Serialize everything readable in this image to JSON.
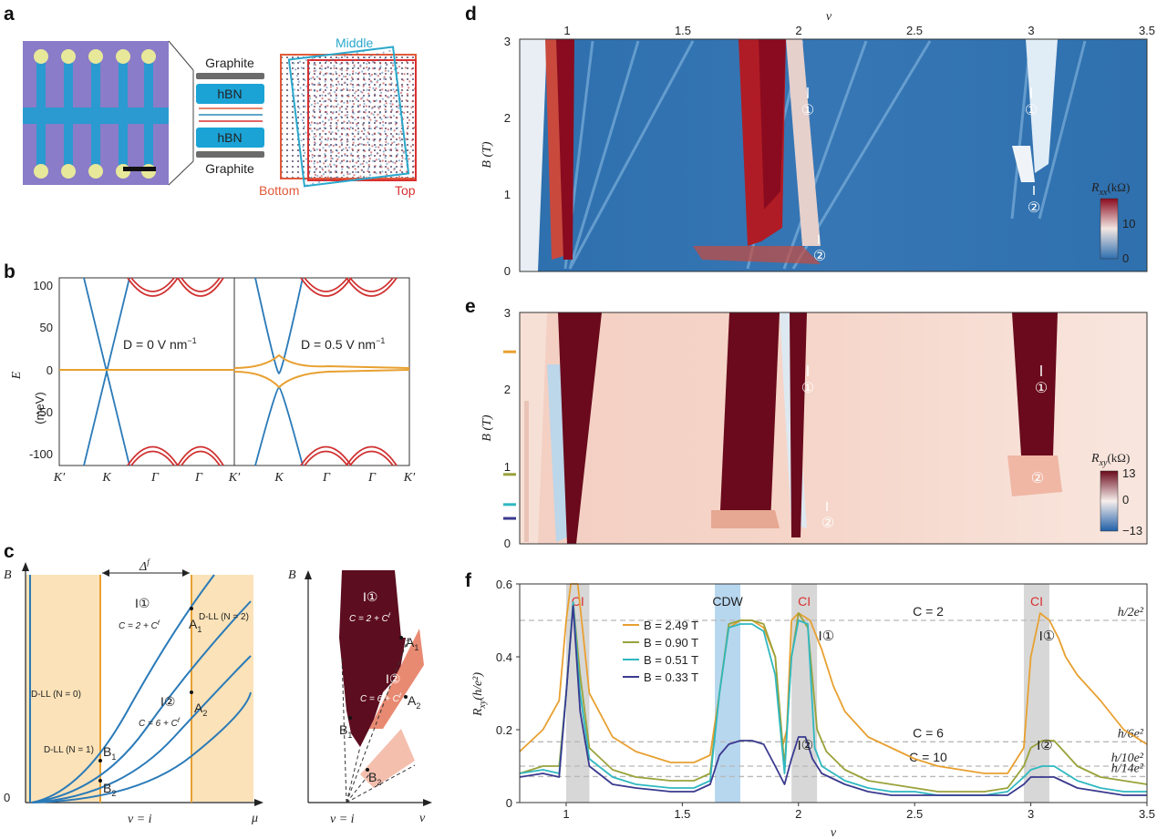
{
  "panel_letters": [
    "a",
    "b",
    "c",
    "d",
    "e",
    "f"
  ],
  "panel_a": {
    "layers": [
      "Graphite",
      "hBN",
      "hBN",
      "Graphite"
    ],
    "moire_labels": {
      "middle": "Middle",
      "bottom": "Bottom",
      "top": "Top"
    },
    "colors": {
      "hbn": "#1ba3d6",
      "graphite": "#6b6b6b",
      "bottom": "#e05a3a",
      "top": "#d93030",
      "middle": "#2aa8cc"
    }
  },
  "panel_b": {
    "ylabel_sym": "E",
    "ylabel_unit": "(meV)",
    "yticks": [
      "100",
      "50",
      "0",
      "-50",
      "-100"
    ],
    "xticks_left": [
      "K′",
      "K",
      "Γ",
      "Γ"
    ],
    "xticks_right": [
      "K′",
      "K",
      "Γ",
      "Γ",
      "K′"
    ],
    "annot_left": "D = 0 V nm",
    "annot_right": "D = 0.5 V nm",
    "annot_sup": "−1",
    "colors": {
      "dirac": "#2a7ab8",
      "flat": "#e8a030",
      "remote": "#d03030"
    }
  },
  "panel_c": {
    "left": {
      "ylabel": "B",
      "origin": "0",
      "xlabel": "μ",
      "vi": "ν = i",
      "delta": "Δ",
      "i1": "I",
      "i1c": "①",
      "c1": "C = 2 + C",
      "i2": "I",
      "i2c": "②",
      "c2": "C = 6 + C",
      "dll0": "D-LL (N = 0)",
      "dll1": "D-LL (N = 1)",
      "dll2": "D-LL (N = 2)",
      "points": {
        "a1": "A",
        "a2": "A",
        "b1": "B",
        "b2": "B",
        "s1": "1",
        "s2": "2"
      }
    },
    "right": {
      "ylabel": "B",
      "xlabel": "ν",
      "vi": "ν = i",
      "i1": "I",
      "i1c": "①",
      "c1": "C = 2 + C",
      "i2": "I",
      "i2c": "②",
      "c2": "C = 6 + C",
      "points": {
        "a1": "A",
        "a2": "A",
        "b1": "B",
        "b2": "B",
        "s1": "1",
        "s2": "2"
      }
    },
    "colors": {
      "band": "#fbe2b8",
      "line": "#2a7ab8",
      "vline": "#e8a030",
      "dark": "#5c0d1f",
      "mid": "#e88a72",
      "light": "#f5bfae"
    }
  },
  "panel_d": {
    "xlabel_top": "ν",
    "xticks": [
      "1",
      "1.5",
      "2",
      "2.5",
      "3",
      "3.5"
    ],
    "ylabel": "B (T)",
    "yticks": [
      "0",
      "1",
      "2",
      "3"
    ],
    "colorbar": {
      "label": "R",
      "sub": "xx",
      "unit": "(kΩ)",
      "max": "10",
      "min": "0"
    },
    "marks": [
      "①",
      "①",
      "②",
      "②"
    ]
  },
  "panel_e": {
    "ylabel": "B (T)",
    "yticks": [
      "0",
      "1",
      "2",
      "3"
    ],
    "colorbar": {
      "label": "R",
      "sub": "xy",
      "unit": "(kΩ)",
      "max": "13",
      "mid": "0",
      "min": "−13"
    },
    "marks": [
      "①",
      "①",
      "②",
      "②"
    ],
    "side_markers": [
      {
        "B": 2.49,
        "color": "#e8a030"
      },
      {
        "B": 0.9,
        "color": "#9aa23a"
      },
      {
        "B": 0.51,
        "color": "#2fb8c0"
      },
      {
        "B": 0.33,
        "color": "#3a3a8f"
      }
    ]
  },
  "chart_data": {
    "type": "line",
    "x_label": "ν",
    "y_label": "R",
    "y_label_sub": "xy",
    "y_label_unit": "(h/e²)",
    "xlim": [
      0.8,
      3.5
    ],
    "ylim": [
      0,
      0.6
    ],
    "xticks": [
      "1",
      "1.5",
      "2",
      "2.5",
      "3",
      "3.5"
    ],
    "yticks": [
      "0",
      "0.2",
      "0.4",
      "0.6"
    ],
    "regions": [
      {
        "label": "CI",
        "x": [
          1.0,
          1.1
        ],
        "color": "#d7d7d7"
      },
      {
        "label": "CDW",
        "x": [
          1.64,
          1.75
        ],
        "color": "#b7d7ef"
      },
      {
        "label": "CI",
        "x": [
          1.97,
          2.08
        ],
        "color": "#d7d7d7"
      },
      {
        "label": "CI",
        "x": [
          2.97,
          3.08
        ],
        "color": "#d7d7d7"
      }
    ],
    "hlines": [
      {
        "y": 0.5,
        "label": "h/2e²",
        "C": "C = 2"
      },
      {
        "y": 0.1667,
        "label": "h/6e²",
        "C": "C = 6"
      },
      {
        "y": 0.1,
        "label": "h/10e²",
        "C": "C = 10"
      },
      {
        "y": 0.0714,
        "label": "h/14e²",
        "C": ""
      }
    ],
    "marks": [
      {
        "x": 2.12,
        "y": 0.5,
        "t": "I①"
      },
      {
        "x": 3.07,
        "y": 0.5,
        "t": "I①"
      },
      {
        "x": 2.03,
        "y": 0.2,
        "t": "I②"
      },
      {
        "x": 3.06,
        "y": 0.2,
        "t": "I②"
      }
    ],
    "legend": [
      {
        "name": "B = 2.49 T",
        "color": "#e8a030"
      },
      {
        "name": "B = 0.90 T",
        "color": "#9aa23a"
      },
      {
        "name": "B = 0.51 T",
        "color": "#2fb8c0"
      },
      {
        "name": "B = 0.33 T",
        "color": "#3a3a8f"
      }
    ],
    "series": [
      {
        "name": "B = 2.49 T",
        "color": "#e8a030",
        "x": [
          0.8,
          0.9,
          0.97,
          1.0,
          1.02,
          1.05,
          1.1,
          1.2,
          1.3,
          1.45,
          1.55,
          1.62,
          1.66,
          1.7,
          1.75,
          1.8,
          1.85,
          1.9,
          1.93,
          1.95,
          1.97,
          2.0,
          2.05,
          2.1,
          2.15,
          2.2,
          2.3,
          2.4,
          2.5,
          2.6,
          2.7,
          2.8,
          2.9,
          2.97,
          3.0,
          3.04,
          3.08,
          3.12,
          3.15,
          3.2,
          3.3,
          3.4,
          3.5
        ],
        "y": [
          0.14,
          0.2,
          0.28,
          0.5,
          0.62,
          0.6,
          0.3,
          0.18,
          0.14,
          0.11,
          0.11,
          0.13,
          0.3,
          0.48,
          0.5,
          0.5,
          0.48,
          0.4,
          0.15,
          0.2,
          0.5,
          0.52,
          0.5,
          0.42,
          0.32,
          0.25,
          0.18,
          0.15,
          0.12,
          0.1,
          0.09,
          0.08,
          0.08,
          0.15,
          0.4,
          0.52,
          0.5,
          0.45,
          0.4,
          0.35,
          0.28,
          0.2,
          0.16
        ]
      },
      {
        "name": "B = 0.90 T",
        "color": "#9aa23a",
        "x": [
          0.8,
          0.9,
          0.97,
          1.0,
          1.03,
          1.06,
          1.1,
          1.2,
          1.3,
          1.45,
          1.55,
          1.62,
          1.66,
          1.7,
          1.75,
          1.8,
          1.85,
          1.9,
          1.94,
          1.97,
          2.0,
          2.04,
          2.08,
          2.12,
          2.2,
          2.3,
          2.4,
          2.5,
          2.6,
          2.7,
          2.8,
          2.9,
          2.97,
          3.0,
          3.05,
          3.1,
          3.2,
          3.3,
          3.4,
          3.5
        ],
        "y": [
          0.08,
          0.1,
          0.1,
          0.3,
          0.55,
          0.35,
          0.15,
          0.09,
          0.07,
          0.06,
          0.06,
          0.08,
          0.3,
          0.49,
          0.5,
          0.5,
          0.49,
          0.4,
          0.1,
          0.4,
          0.52,
          0.48,
          0.2,
          0.14,
          0.09,
          0.06,
          0.05,
          0.04,
          0.03,
          0.03,
          0.03,
          0.04,
          0.1,
          0.15,
          0.17,
          0.17,
          0.1,
          0.07,
          0.06,
          0.05
        ]
      },
      {
        "name": "B = 0.51 T",
        "color": "#2fb8c0",
        "x": [
          0.8,
          0.9,
          0.97,
          1.0,
          1.03,
          1.06,
          1.1,
          1.2,
          1.3,
          1.45,
          1.55,
          1.62,
          1.66,
          1.7,
          1.75,
          1.8,
          1.85,
          1.9,
          1.94,
          1.97,
          2.0,
          2.04,
          2.07,
          2.1,
          2.2,
          2.3,
          2.4,
          2.5,
          2.6,
          2.7,
          2.8,
          2.9,
          2.97,
          3.0,
          3.05,
          3.1,
          3.2,
          3.3,
          3.4,
          3.5
        ],
        "y": [
          0.08,
          0.09,
          0.08,
          0.3,
          0.55,
          0.3,
          0.12,
          0.07,
          0.05,
          0.04,
          0.04,
          0.06,
          0.3,
          0.48,
          0.49,
          0.49,
          0.47,
          0.35,
          0.08,
          0.4,
          0.5,
          0.49,
          0.15,
          0.1,
          0.06,
          0.04,
          0.03,
          0.03,
          0.02,
          0.02,
          0.02,
          0.03,
          0.07,
          0.09,
          0.1,
          0.1,
          0.06,
          0.04,
          0.03,
          0.03
        ]
      },
      {
        "name": "B = 0.33 T",
        "color": "#3a3a8f",
        "x": [
          0.8,
          0.9,
          0.97,
          1.0,
          1.03,
          1.06,
          1.1,
          1.2,
          1.3,
          1.45,
          1.55,
          1.62,
          1.66,
          1.7,
          1.75,
          1.8,
          1.85,
          1.9,
          1.94,
          1.97,
          2.0,
          2.03,
          2.06,
          2.1,
          2.2,
          2.3,
          2.4,
          2.5,
          2.6,
          2.7,
          2.8,
          2.9,
          2.97,
          3.0,
          3.05,
          3.1,
          3.2,
          3.3,
          3.4,
          3.5
        ],
        "y": [
          0.07,
          0.08,
          0.07,
          0.3,
          0.54,
          0.25,
          0.1,
          0.05,
          0.04,
          0.03,
          0.03,
          0.05,
          0.13,
          0.16,
          0.17,
          0.17,
          0.16,
          0.1,
          0.05,
          0.12,
          0.18,
          0.18,
          0.12,
          0.08,
          0.05,
          0.03,
          0.02,
          0.02,
          0.02,
          0.02,
          0.02,
          0.02,
          0.05,
          0.07,
          0.07,
          0.07,
          0.04,
          0.03,
          0.02,
          0.02
        ]
      }
    ]
  }
}
